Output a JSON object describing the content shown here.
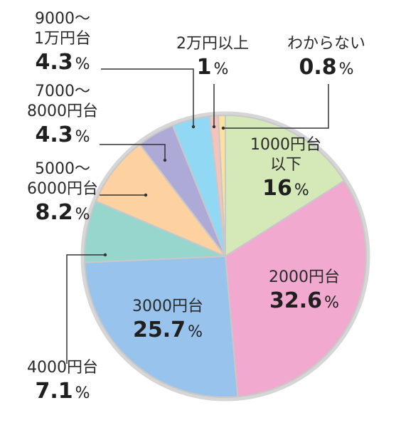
{
  "chart_data": {
    "type": "pie",
    "slices": [
      {
        "label": [
          "1000円台",
          "以下"
        ],
        "value": 16,
        "display": "16",
        "color": "#d4e8b8"
      },
      {
        "label": [
          "2000円台"
        ],
        "value": 32.6,
        "display": "32.6",
        "color": "#f2a9cf"
      },
      {
        "label": [
          "3000円台"
        ],
        "value": 25.7,
        "display": "25.7",
        "color": "#97c3ec"
      },
      {
        "label": [
          "4000円台"
        ],
        "value": 7.1,
        "display": "7.1",
        "color": "#97d6cd"
      },
      {
        "label": [
          "5000～",
          "6000円台"
        ],
        "value": 8.2,
        "display": "8.2",
        "color": "#fdd2a0"
      },
      {
        "label": [
          "7000～",
          "8000円台"
        ],
        "value": 4.3,
        "display": "4.3",
        "color": "#aeaad8"
      },
      {
        "label": [
          "9000～",
          "1万円台"
        ],
        "value": 4.3,
        "display": "4.3",
        "color": "#90d8f4"
      },
      {
        "label": [
          "2万円以上"
        ],
        "value": 1,
        "display": "1",
        "color": "#f4c4bc"
      },
      {
        "label": [
          "わからない"
        ],
        "value": 0.8,
        "display": "0.8",
        "color": "#fbe29a"
      }
    ],
    "percent_symbol": "%",
    "start_angle_deg": 0,
    "direction": "clockwise",
    "outline_color": "#d6d6d6"
  }
}
